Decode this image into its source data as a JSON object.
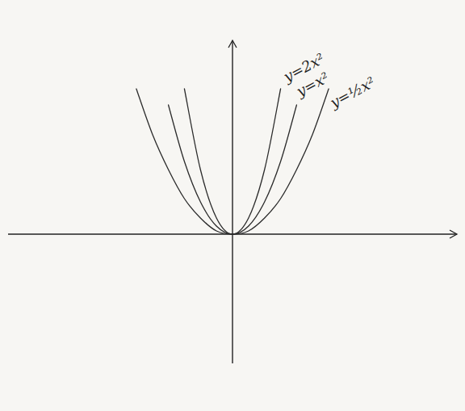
{
  "chart_data": {
    "type": "line",
    "x": [
      -3,
      -2.5,
      -2,
      -1.5,
      -1,
      -0.5,
      0,
      0.5,
      1,
      1.5,
      2,
      2.5,
      3
    ],
    "series": [
      {
        "name": "y=2x²",
        "color": "#2b2b2b",
        "values": [
          null,
          null,
          null,
          4.5,
          2,
          0.5,
          0,
          0.5,
          2,
          4.5,
          null,
          null,
          null
        ]
      },
      {
        "name": "y=x²",
        "color": "#2b2b2b",
        "values": [
          null,
          null,
          4,
          2.25,
          1,
          0.25,
          0,
          0.25,
          1,
          2.25,
          4,
          null,
          null
        ]
      },
      {
        "name": "y=½x²",
        "color": "#2b2b2b",
        "values": [
          4.5,
          3.1,
          2,
          1.1,
          0.5,
          0.1,
          0,
          0.1,
          0.5,
          1.1,
          2,
          3.1,
          4.5
        ]
      }
    ],
    "xlim": [
      -7,
      7
    ],
    "ylim": [
      -4,
      6
    ],
    "tick_labels": false,
    "grid": false
  }
}
